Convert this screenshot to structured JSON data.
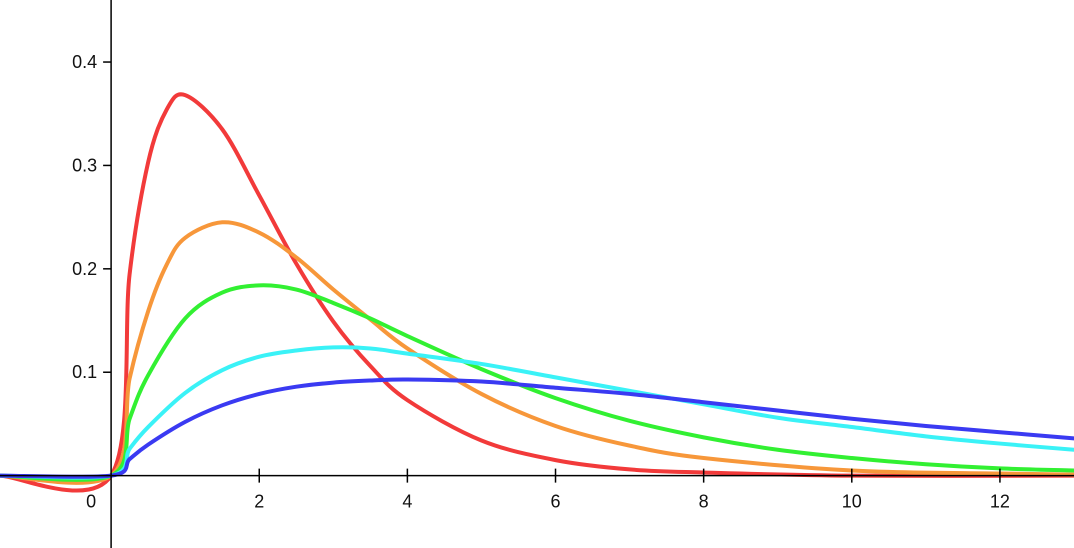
{
  "chart_data": {
    "type": "line",
    "title": "",
    "xlabel": "",
    "ylabel": "",
    "xlim": [
      -1.5,
      13
    ],
    "ylim": [
      -0.07,
      0.46
    ],
    "grid": false,
    "legend": "none",
    "x_ticks": [
      {
        "value": 0,
        "label": "0"
      },
      {
        "value": 2,
        "label": "2"
      },
      {
        "value": 4,
        "label": "4"
      },
      {
        "value": 6,
        "label": "6"
      },
      {
        "value": 8,
        "label": "8"
      },
      {
        "value": 10,
        "label": "10"
      },
      {
        "value": 12,
        "label": "12"
      }
    ],
    "y_ticks": [
      {
        "value": 0.1,
        "label": "0.1"
      },
      {
        "value": 0.2,
        "label": "0.2"
      },
      {
        "value": 0.3,
        "label": "0.3"
      },
      {
        "value": 0.4,
        "label": "0.4"
      }
    ],
    "series": [
      {
        "color": "#f23a3a",
        "points": [
          [
            -1.5,
            0
          ],
          [
            0,
            0
          ],
          [
            0.25,
            0.195
          ],
          [
            0.5,
            0.303
          ],
          [
            0.75,
            0.354
          ],
          [
            1,
            0.368
          ],
          [
            1.5,
            0.335
          ],
          [
            2,
            0.271
          ],
          [
            2.5,
            0.205
          ],
          [
            3,
            0.149
          ],
          [
            3.5,
            0.106
          ],
          [
            4,
            0.073
          ],
          [
            5,
            0.034
          ],
          [
            6,
            0.015
          ],
          [
            7,
            0.006
          ],
          [
            8,
            0.003
          ],
          [
            10,
            0
          ],
          [
            13,
            0
          ]
        ]
      },
      {
        "color": "#f7973a",
        "points": [
          [
            -1.5,
            0
          ],
          [
            0,
            0
          ],
          [
            0.25,
            0.094
          ],
          [
            0.5,
            0.159
          ],
          [
            0.75,
            0.204
          ],
          [
            1,
            0.23
          ],
          [
            1.5,
            0.245
          ],
          [
            2,
            0.235
          ],
          [
            2.5,
            0.211
          ],
          [
            3,
            0.18
          ],
          [
            3.5,
            0.151
          ],
          [
            4,
            0.123
          ],
          [
            5,
            0.079
          ],
          [
            6,
            0.048
          ],
          [
            7,
            0.029
          ],
          [
            8,
            0.017
          ],
          [
            10,
            0.005
          ],
          [
            12,
            0.002
          ],
          [
            13,
            0.001
          ]
        ]
      },
      {
        "color": "#32f032",
        "points": [
          [
            -1.5,
            0
          ],
          [
            0,
            0
          ],
          [
            0.25,
            0.055
          ],
          [
            0.5,
            0.097
          ],
          [
            1,
            0.152
          ],
          [
            1.5,
            0.177
          ],
          [
            2,
            0.184
          ],
          [
            2.5,
            0.18
          ],
          [
            3,
            0.167
          ],
          [
            3.5,
            0.152
          ],
          [
            4,
            0.135
          ],
          [
            5,
            0.103
          ],
          [
            6,
            0.075
          ],
          [
            7,
            0.053
          ],
          [
            8,
            0.037
          ],
          [
            9,
            0.025
          ],
          [
            10,
            0.017
          ],
          [
            11,
            0.011
          ],
          [
            12,
            0.007
          ],
          [
            13,
            0.005
          ]
        ]
      },
      {
        "color": "#3af2f7",
        "points": [
          [
            -1.5,
            0
          ],
          [
            0,
            0
          ],
          [
            0.25,
            0.026
          ],
          [
            0.5,
            0.047
          ],
          [
            1,
            0.08
          ],
          [
            1.5,
            0.102
          ],
          [
            2,
            0.115
          ],
          [
            2.5,
            0.121
          ],
          [
            3,
            0.124
          ],
          [
            3.5,
            0.123
          ],
          [
            4,
            0.118
          ],
          [
            5,
            0.108
          ],
          [
            6,
            0.095
          ],
          [
            7,
            0.082
          ],
          [
            8,
            0.069
          ],
          [
            9,
            0.056
          ],
          [
            10,
            0.047
          ],
          [
            11,
            0.038
          ],
          [
            12,
            0.031
          ],
          [
            13,
            0.025
          ]
        ]
      },
      {
        "color": "#3a3af2",
        "points": [
          [
            -1.5,
            0
          ],
          [
            0,
            0
          ],
          [
            0.25,
            0.016
          ],
          [
            0.5,
            0.03
          ],
          [
            1,
            0.052
          ],
          [
            1.5,
            0.068
          ],
          [
            2,
            0.079
          ],
          [
            2.5,
            0.086
          ],
          [
            3,
            0.09
          ],
          [
            3.5,
            0.092
          ],
          [
            4,
            0.093
          ],
          [
            5,
            0.091
          ],
          [
            6,
            0.085
          ],
          [
            7,
            0.079
          ],
          [
            8,
            0.071
          ],
          [
            9,
            0.063
          ],
          [
            10,
            0.055
          ],
          [
            11,
            0.048
          ],
          [
            12,
            0.042
          ],
          [
            13,
            0.036
          ]
        ]
      }
    ]
  }
}
